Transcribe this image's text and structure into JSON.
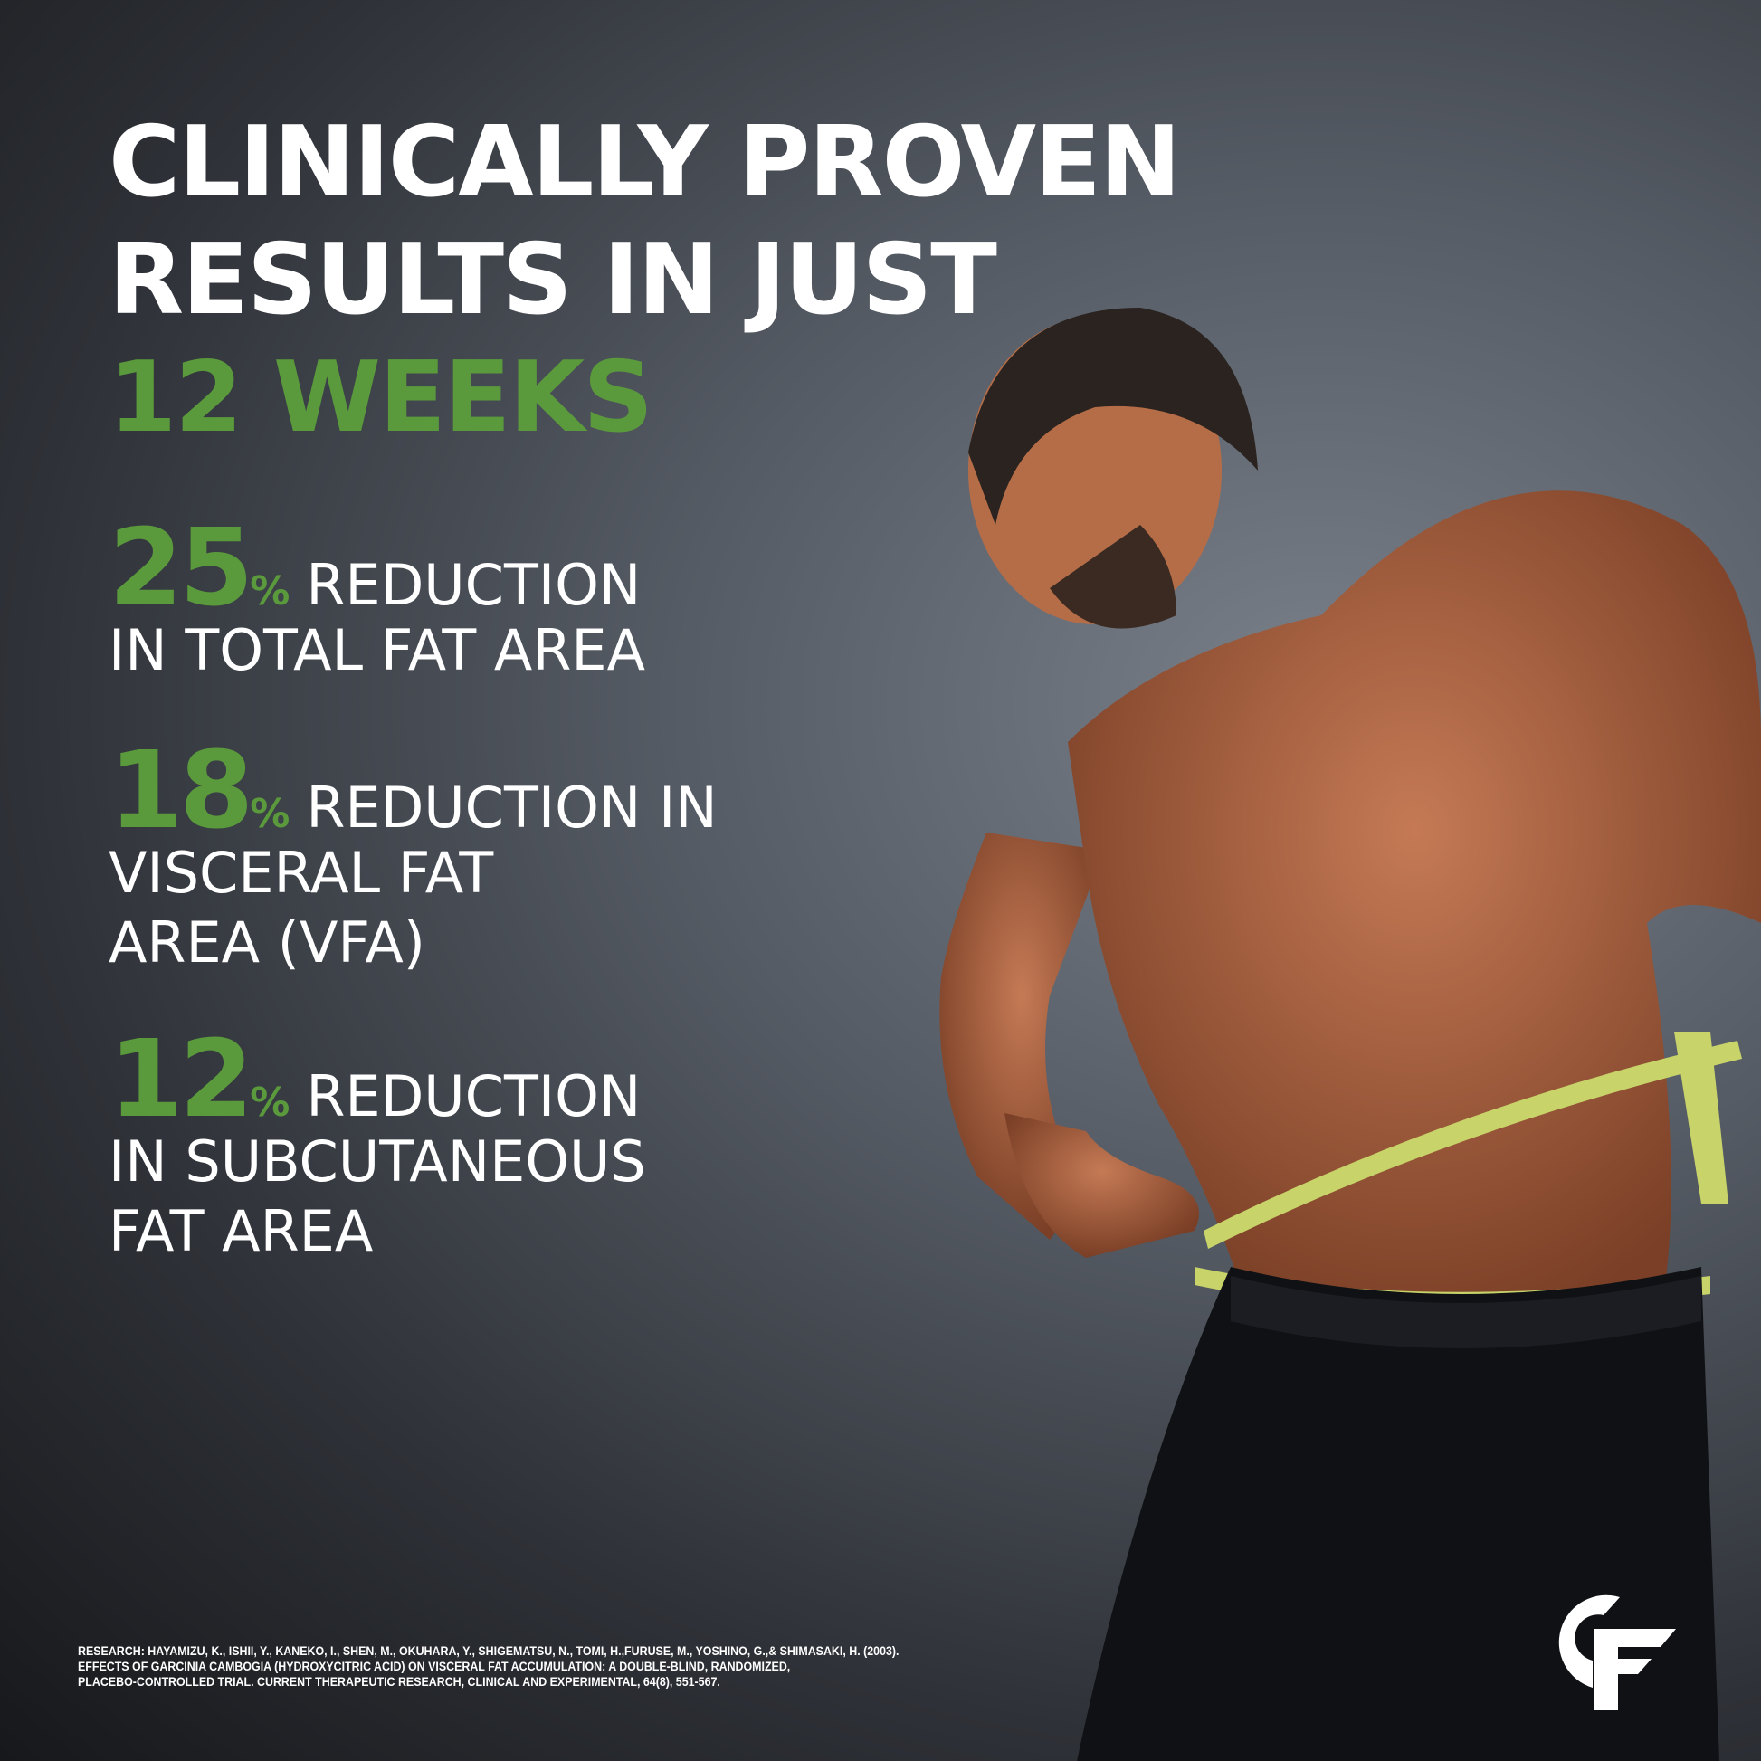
{
  "headline": {
    "line1": "CLINICALLY PROVEN",
    "line2": "RESULTS IN JUST",
    "line3": "12 WEEKS"
  },
  "stats": [
    {
      "number": "25",
      "percent": "%",
      "line1": "REDUCTION",
      "line2": "IN TOTAL FAT AREA",
      "line3": ""
    },
    {
      "number": "18",
      "percent": "%",
      "line1": "REDUCTION IN",
      "line2": "VISCERAL FAT",
      "line3": "AREA (VFA)"
    },
    {
      "number": "12",
      "percent": "%",
      "line1": "REDUCTION",
      "line2": "IN SUBCUTANEOUS",
      "line3": "FAT AREA"
    }
  ],
  "research": {
    "line1": "RESEARCH: HAYAMIZU, K., ISHII, Y., KANEKO, I., SHEN, M., OKUHARA, Y., SHIGEMATSU, N., TOMI, H.,FURUSE, M., YOSHINO, G.,& SHIMASAKI, H. (2003).",
    "line2": "EFFECTS OF GARCINIA CAMBOGIA (HYDROXYCITRIC ACID) ON VISCERAL FAT ACCUMULATION: A DOUBLE-BLIND, RANDOMIZED,",
    "line3": "PLACEBO-CONTROLLED TRIAL. CURRENT THERAPEUTIC RESEARCH, CLINICAL AND EXPERIMENTAL, 64(8), 551-567."
  },
  "logo": {
    "text": "CF"
  },
  "colors": {
    "accent": "#5a9a3c",
    "text": "#ffffff",
    "background": "#3f444c"
  }
}
